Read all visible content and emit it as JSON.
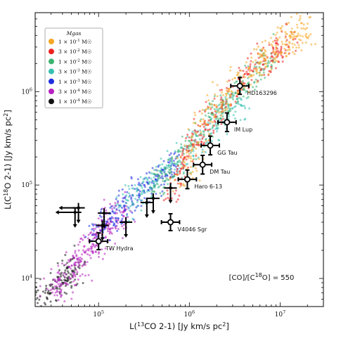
{
  "chart_data": {
    "type": "scatter",
    "title": "",
    "xlabel": "L(13CO 2-1) [Jy km/s pc2]",
    "ylabel": "L(C18O 2-1) [Jy km/s pc2]",
    "x_scale": "log",
    "y_scale": "log",
    "xlim": [
      20000,
      30000000
    ],
    "ylim": [
      5000,
      7000000
    ],
    "x_ticks": [
      {
        "value": 100000,
        "label": "10^5"
      },
      {
        "value": 1000000,
        "label": "10^6"
      },
      {
        "value": 10000000,
        "label": "10^7"
      }
    ],
    "y_ticks": [
      {
        "value": 10000,
        "label": "10^4"
      },
      {
        "value": 100000,
        "label": "10^5"
      },
      {
        "value": 1000000,
        "label": "10^6"
      }
    ],
    "annotation": "[CO]/[C18O] = 550",
    "legend": {
      "title": "Mgas",
      "position": "top-left",
      "entries": [
        {
          "label": "1 × 10^-1 M☉",
          "color": "#f5a623"
        },
        {
          "label": "3 × 10^-2 M☉",
          "color": "#ee2020"
        },
        {
          "label": "1 × 10^-2 M☉",
          "color": "#3cb371"
        },
        {
          "label": "3 × 10^-3 M☉",
          "color": "#35c0b0"
        },
        {
          "label": "1 × 10^-3 M☉",
          "color": "#1f2fe0"
        },
        {
          "label": "3 × 10^-4 M☉",
          "color": "#b620c0"
        },
        {
          "label": "1 × 10^-4 M☉",
          "color": "#111111"
        }
      ]
    },
    "model_clouds": [
      {
        "name": "1e-1",
        "color": "#f5a623",
        "track": [
          [
            800000,
            100000
          ],
          [
            1500000,
            500000
          ],
          [
            4000000,
            1500000
          ],
          [
            10000000,
            3200000
          ],
          [
            20000000,
            5000000
          ]
        ],
        "spread": 0.2,
        "n": 320
      },
      {
        "name": "3e-2",
        "color": "#ee2020",
        "track": [
          [
            600000,
            80000
          ],
          [
            1200000,
            320000
          ],
          [
            3000000,
            1000000
          ],
          [
            7000000,
            2200000
          ],
          [
            14000000,
            3800000
          ]
        ],
        "spread": 0.16,
        "n": 280
      },
      {
        "name": "1e-2",
        "color": "#3cb371",
        "track": [
          [
            400000,
            90000
          ],
          [
            900000,
            220000
          ],
          [
            2000000,
            600000
          ],
          [
            4500000,
            1300000
          ],
          [
            9000000,
            2500000
          ]
        ],
        "spread": 0.16,
        "n": 250
      },
      {
        "name": "3e-3",
        "color": "#35c0b0",
        "track": [
          [
            180000,
            60000
          ],
          [
            400000,
            110000
          ],
          [
            900000,
            230000
          ],
          [
            2000000,
            450000
          ],
          [
            4000000,
            800000
          ]
        ],
        "spread": 0.17,
        "n": 260
      },
      {
        "name": "1e-3",
        "color": "#1f2fe0",
        "track": [
          [
            90000,
            30000
          ],
          [
            180000,
            60000
          ],
          [
            350000,
            100000
          ],
          [
            700000,
            160000
          ]
        ],
        "spread": 0.18,
        "n": 220
      },
      {
        "name": "3e-4",
        "color": "#b620c0",
        "track": [
          [
            30000,
            7000
          ],
          [
            60000,
            15000
          ],
          [
            110000,
            32000
          ],
          [
            200000,
            55000
          ]
        ],
        "spread": 0.22,
        "n": 300
      },
      {
        "name": "1e-4",
        "color": "#111111",
        "track": [
          [
            22000,
            6000
          ],
          [
            40000,
            9000
          ],
          [
            60000,
            15000
          ]
        ],
        "spread": 0.18,
        "n": 130
      }
    ],
    "sources": [
      {
        "label": "HD163296",
        "x": 3600000,
        "y": 1150000,
        "xerr": 0.1,
        "yerr": 0.09,
        "type": "detection",
        "label_pos": "below-right"
      },
      {
        "label": "IM Lup",
        "x": 2600000,
        "y": 470000,
        "xerr": 0.1,
        "yerr": 0.1,
        "type": "detection",
        "label_pos": "below-right"
      },
      {
        "label": "GG Tau",
        "x": 1700000,
        "y": 265000,
        "xerr": 0.1,
        "yerr": 0.1,
        "type": "detection",
        "label_pos": "below-right"
      },
      {
        "label": "DM Tau",
        "x": 1400000,
        "y": 165000,
        "xerr": 0.1,
        "yerr": 0.1,
        "type": "detection",
        "label_pos": "below-right"
      },
      {
        "label": "Haro 6-13",
        "x": 950000,
        "y": 115000,
        "xerr": 0.1,
        "yerr": 0.1,
        "type": "detection",
        "label_pos": "below-right"
      },
      {
        "label": "V4046 Sgr",
        "x": 620000,
        "y": 40000,
        "xerr": 0.1,
        "yerr": 0.09,
        "type": "detection",
        "label_pos": "below-right"
      },
      {
        "label": "TW Hydra",
        "x": 100000,
        "y": 25000,
        "xerr": 0.1,
        "yerr": 0.09,
        "type": "detection",
        "label_pos": "below-right"
      },
      {
        "label": "",
        "x": 620000,
        "y": 93000,
        "type": "upper_y"
      },
      {
        "label": "",
        "x": 400000,
        "y": 72000,
        "type": "upper_y"
      },
      {
        "label": "",
        "x": 340000,
        "y": 65000,
        "type": "upper_y"
      },
      {
        "label": "",
        "x": 200000,
        "y": 40000,
        "type": "upper_y"
      },
      {
        "label": "",
        "x": 115000,
        "y": 50000,
        "type": "upper_y"
      },
      {
        "label": "",
        "x": 110000,
        "y": 37000,
        "type": "upper_y"
      },
      {
        "label": "",
        "x": 60000,
        "y": 57000,
        "type": "upper_xy"
      },
      {
        "label": "",
        "x": 55000,
        "y": 51000,
        "type": "upper_xy"
      }
    ]
  }
}
